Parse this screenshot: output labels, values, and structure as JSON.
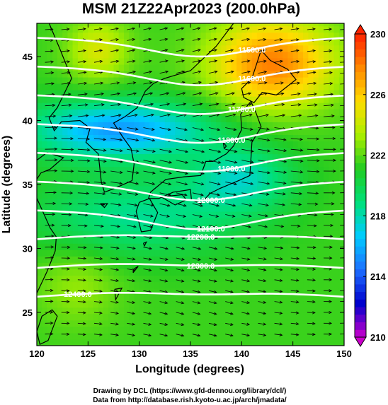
{
  "chart_data": {
    "type": "heatmap",
    "title": "MSM 21Z22Apr2023 (200.0hPa)",
    "xlabel": "Longitude (degrees)",
    "ylabel": "Latitude  (degrees)",
    "xlim": [
      120,
      150
    ],
    "ylim": [
      22.4,
      47.6
    ],
    "x_ticks": [
      120,
      125,
      130,
      135,
      140,
      145,
      150
    ],
    "y_ticks": [
      25,
      30,
      35,
      40,
      45
    ],
    "colorbar": {
      "min": 210,
      "max": 230,
      "ticks": [
        210,
        214,
        218,
        222,
        226,
        230
      ],
      "colors": [
        "#cc00cc",
        "#0000cc",
        "#1e6fff",
        "#00ccff",
        "#00e07a",
        "#22cc22",
        "#aaee00",
        "#ffdd00",
        "#ff8800",
        "#ff2200"
      ]
    },
    "contours": [
      {
        "label": "11500.0",
        "value": 11500
      },
      {
        "label": "11600.0",
        "value": 11600
      },
      {
        "label": "11700.0",
        "value": 11700
      },
      {
        "label": "11800.0",
        "value": 11800
      },
      {
        "label": "11900.0",
        "value": 11900
      },
      {
        "label": "12000.0",
        "value": 12000
      },
      {
        "label": "12100.0",
        "value": 12100
      },
      {
        "label": "12200.0",
        "value": 12200
      },
      {
        "label": "12300.0",
        "value": 12300
      },
      {
        "label": "12400.0",
        "value": 12400
      }
    ],
    "credits": [
      "Drawing by DCL (https://www.gfd-dennou.org/library/dcl/)",
      "Data from http://database.rish.kyoto-u.ac.jp/arch/jmadata/"
    ]
  }
}
